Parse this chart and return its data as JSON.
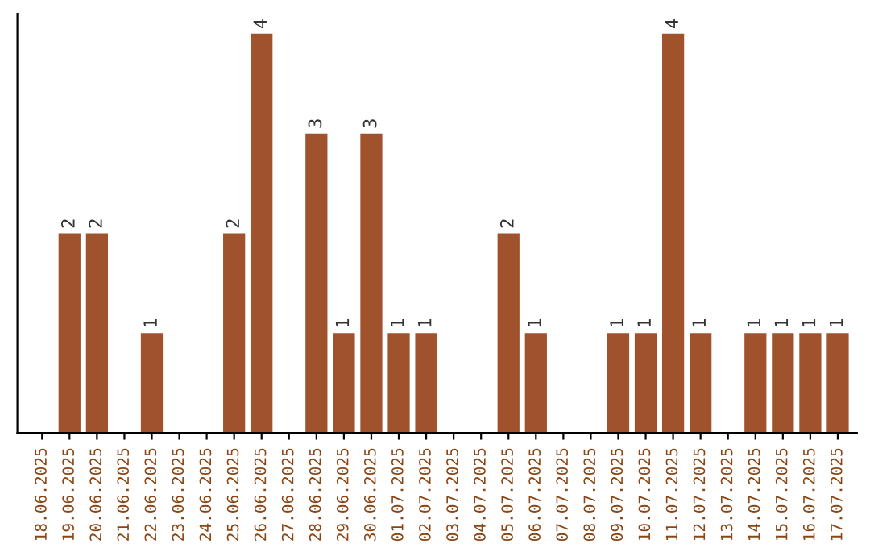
{
  "chart_data": {
    "type": "bar",
    "categories": [
      "18.06.2025",
      "19.06.2025",
      "20.06.2025",
      "21.06.2025",
      "22.06.2025",
      "23.06.2025",
      "24.06.2025",
      "25.06.2025",
      "26.06.2025",
      "27.06.2025",
      "28.06.2025",
      "29.06.2025",
      "30.06.2025",
      "01.07.2025",
      "02.07.2025",
      "03.07.2025",
      "04.07.2025",
      "05.07.2025",
      "06.07.2025",
      "07.07.2025",
      "08.07.2025",
      "09.07.2025",
      "10.07.2025",
      "11.07.2025",
      "12.07.2025",
      "13.07.2025",
      "14.07.2025",
      "15.07.2025",
      "16.07.2025",
      "17.07.2025"
    ],
    "values": [
      0,
      2,
      2,
      0,
      1,
      0,
      0,
      2,
      4,
      0,
      3,
      1,
      3,
      1,
      1,
      0,
      0,
      2,
      1,
      0,
      0,
      1,
      1,
      4,
      1,
      0,
      1,
      1,
      1,
      1
    ],
    "value_labels": [
      null,
      "2",
      "2",
      null,
      "1",
      null,
      null,
      "2",
      "4",
      null,
      "3",
      "1",
      "3",
      "1",
      "1",
      null,
      null,
      "2",
      "1",
      null,
      null,
      "1",
      "1",
      "4",
      "1",
      null,
      "1",
      "1",
      "1",
      "1"
    ],
    "color": "#a0522d",
    "grid": false,
    "legend": false,
    "tick_labels": "x"
  }
}
